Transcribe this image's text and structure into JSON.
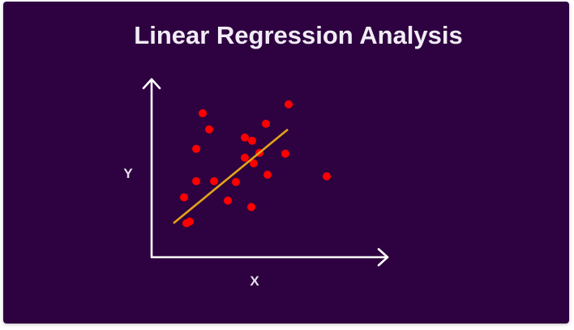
{
  "chart_data": {
    "type": "scatter",
    "title": "Linear Regression Analysis",
    "xlabel": "X",
    "ylabel": "Y",
    "xlim": [
      0,
      30
    ],
    "ylim": [
      0,
      24
    ],
    "grid": false,
    "tick_labels": "none",
    "points": [
      {
        "x": 4.3,
        "y": 4.2
      },
      {
        "x": 5.5,
        "y": 13.4
      },
      {
        "x": 4.0,
        "y": 7.4
      },
      {
        "x": 4.7,
        "y": 4.4
      },
      {
        "x": 5.5,
        "y": 9.4
      },
      {
        "x": 7.7,
        "y": 9.4
      },
      {
        "x": 7.1,
        "y": 15.8
      },
      {
        "x": 6.3,
        "y": 17.8
      },
      {
        "x": 9.4,
        "y": 7.0
      },
      {
        "x": 10.4,
        "y": 9.3
      },
      {
        "x": 11.5,
        "y": 14.8
      },
      {
        "x": 11.5,
        "y": 12.3
      },
      {
        "x": 12.4,
        "y": 14.4
      },
      {
        "x": 13.3,
        "y": 12.9
      },
      {
        "x": 14.1,
        "y": 16.5
      },
      {
        "x": 12.6,
        "y": 11.6
      },
      {
        "x": 14.3,
        "y": 10.2
      },
      {
        "x": 16.5,
        "y": 12.8
      },
      {
        "x": 12.3,
        "y": 6.2
      },
      {
        "x": 16.9,
        "y": 18.9
      },
      {
        "x": 21.6,
        "y": 10.0
      }
    ],
    "regression_line": {
      "x": [
        2.7,
        16.8
      ],
      "y": [
        4.2,
        15.8
      ]
    },
    "colors": {
      "background": "#2e0240",
      "axes": "#ffffff",
      "points": "#ff0000",
      "regression_line": "#e6a317",
      "text": "#f1ecf6"
    }
  }
}
